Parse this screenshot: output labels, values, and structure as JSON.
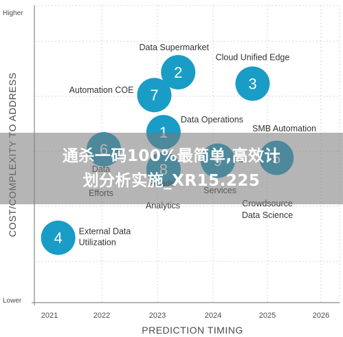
{
  "chart_data": {
    "type": "scatter",
    "title": "",
    "xlabel": "PREDICTION TIMING",
    "ylabel": "COST/COMPLEXITY TO ADDRESS",
    "x_ticks": [
      "2021",
      "2022",
      "2023",
      "2024",
      "2025",
      "2026"
    ],
    "xlim": [
      2021,
      2026
    ],
    "y_ticks": [
      "Lower",
      "Higher"
    ],
    "ylim": [
      0,
      100
    ],
    "grid": true,
    "point_color": "#199cc6",
    "points": [
      {
        "number": "1",
        "label": "Data Operations",
        "x": 2023.1,
        "y": 59
      },
      {
        "number": "2",
        "label": "Data Supermarket",
        "x": 2023.37,
        "y": 80
      },
      {
        "number": "3",
        "label": "Cloud Unified Edge",
        "x": 2024.74,
        "y": 76
      },
      {
        "number": "4",
        "label": "External Data Utilization",
        "x": 2021.16,
        "y": 22
      },
      {
        "number": "5",
        "label": "",
        "x": 2025.18,
        "y": 50
      },
      {
        "number": "6",
        "label": "",
        "x": 2022.0,
        "y": 53
      },
      {
        "number": "7",
        "label": "Automation COE",
        "x": 2022.93,
        "y": 72
      },
      {
        "number": "8",
        "label": "",
        "x": 2023.1,
        "y": 46
      },
      {
        "number": "9",
        "label": "",
        "x": 2024.1,
        "y": 49
      }
    ],
    "extra_labels": [
      "SMB Automation",
      "Data",
      "Efforts",
      "Heade",
      "Analytics",
      "ed",
      "Services",
      "Crowdsource",
      "Data Science"
    ]
  },
  "watermark": {
    "line1": "通杀一码100%最简单,高效计",
    "line2": "划分析实施_XR15.225"
  }
}
